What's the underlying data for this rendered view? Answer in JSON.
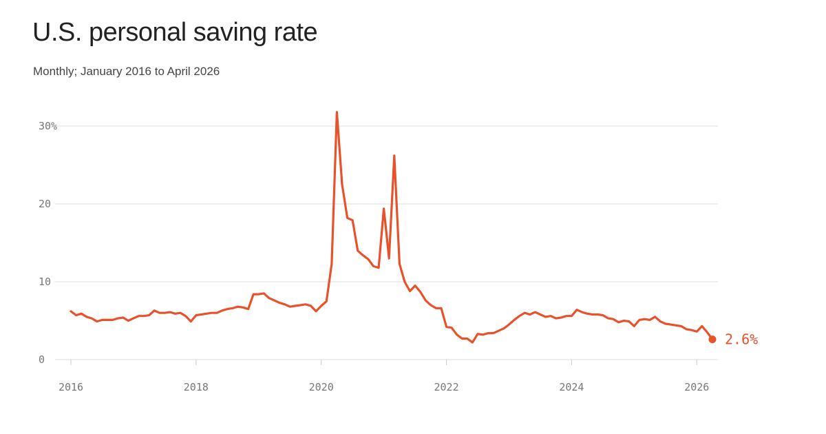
{
  "title": "U.S. personal saving rate",
  "subtitle": "Monthly; January 2016 to April 2026",
  "colors": {
    "line": "#e8512a",
    "grid": "#dddddd",
    "axis_text": "#777777"
  },
  "chart_data": {
    "type": "line",
    "title": "U.S. personal saving rate",
    "subtitle": "Monthly; January 2016 to April 2026",
    "xlabel": "",
    "ylabel": "",
    "x_range": [
      "2016-01",
      "2026-04"
    ],
    "ylim": [
      0,
      30
    ],
    "y_ticks": [
      {
        "value": 0,
        "label": "0"
      },
      {
        "value": 10,
        "label": "10"
      },
      {
        "value": 20,
        "label": "20"
      },
      {
        "value": 30,
        "label": "30%"
      }
    ],
    "x_ticks": [
      {
        "value": "2016-01",
        "label": "2016"
      },
      {
        "value": "2018-01",
        "label": "2018"
      },
      {
        "value": "2020-01",
        "label": "2020"
      },
      {
        "value": "2022-01",
        "label": "2022"
      },
      {
        "value": "2024-01",
        "label": "2024"
      },
      {
        "value": "2026-01",
        "label": "2026"
      }
    ],
    "grid": true,
    "end_label": "2.6%",
    "series": [
      {
        "values": [
          [
            "2016-01",
            6.2
          ],
          [
            "2016-02",
            5.7
          ],
          [
            "2016-03",
            5.9
          ],
          [
            "2016-04",
            5.5
          ],
          [
            "2016-05",
            5.3
          ],
          [
            "2016-06",
            4.9
          ],
          [
            "2016-07",
            5.1
          ],
          [
            "2016-08",
            5.1
          ],
          [
            "2016-09",
            5.1
          ],
          [
            "2016-10",
            5.3
          ],
          [
            "2016-11",
            5.4
          ],
          [
            "2016-12",
            5.0
          ],
          [
            "2017-01",
            5.3
          ],
          [
            "2017-02",
            5.6
          ],
          [
            "2017-03",
            5.6
          ],
          [
            "2017-04",
            5.7
          ],
          [
            "2017-05",
            6.3
          ],
          [
            "2017-06",
            6.0
          ],
          [
            "2017-07",
            6.0
          ],
          [
            "2017-08",
            6.1
          ],
          [
            "2017-09",
            5.9
          ],
          [
            "2017-10",
            6.0
          ],
          [
            "2017-11",
            5.6
          ],
          [
            "2017-12",
            4.9
          ],
          [
            "2018-01",
            5.7
          ],
          [
            "2018-02",
            5.8
          ],
          [
            "2018-03",
            5.9
          ],
          [
            "2018-04",
            6.0
          ],
          [
            "2018-05",
            6.0
          ],
          [
            "2018-06",
            6.3
          ],
          [
            "2018-07",
            6.5
          ],
          [
            "2018-08",
            6.6
          ],
          [
            "2018-09",
            6.8
          ],
          [
            "2018-10",
            6.7
          ],
          [
            "2018-11",
            6.5
          ],
          [
            "2018-12",
            8.4
          ],
          [
            "2019-01",
            8.4
          ],
          [
            "2019-02",
            8.5
          ],
          [
            "2019-03",
            7.9
          ],
          [
            "2019-04",
            7.6
          ],
          [
            "2019-05",
            7.3
          ],
          [
            "2019-06",
            7.1
          ],
          [
            "2019-07",
            6.8
          ],
          [
            "2019-08",
            6.9
          ],
          [
            "2019-09",
            7.0
          ],
          [
            "2019-10",
            7.1
          ],
          [
            "2019-11",
            6.9
          ],
          [
            "2019-12",
            6.2
          ],
          [
            "2020-01",
            6.9
          ],
          [
            "2020-02",
            7.5
          ],
          [
            "2020-03",
            12.3
          ],
          [
            "2020-04",
            31.8
          ],
          [
            "2020-05",
            22.5
          ],
          [
            "2020-06",
            18.2
          ],
          [
            "2020-07",
            17.9
          ],
          [
            "2020-08",
            14.0
          ],
          [
            "2020-09",
            13.4
          ],
          [
            "2020-10",
            12.9
          ],
          [
            "2020-11",
            12.0
          ],
          [
            "2020-12",
            11.8
          ],
          [
            "2021-01",
            19.4
          ],
          [
            "2021-02",
            13.0
          ],
          [
            "2021-03",
            26.2
          ],
          [
            "2021-04",
            12.3
          ],
          [
            "2021-05",
            10.0
          ],
          [
            "2021-06",
            8.8
          ],
          [
            "2021-07",
            9.5
          ],
          [
            "2021-08",
            8.7
          ],
          [
            "2021-09",
            7.6
          ],
          [
            "2021-10",
            7.0
          ],
          [
            "2021-11",
            6.6
          ],
          [
            "2021-12",
            6.6
          ],
          [
            "2022-01",
            4.2
          ],
          [
            "2022-02",
            4.1
          ],
          [
            "2022-03",
            3.2
          ],
          [
            "2022-04",
            2.7
          ],
          [
            "2022-05",
            2.7
          ],
          [
            "2022-06",
            2.2
          ],
          [
            "2022-07",
            3.3
          ],
          [
            "2022-08",
            3.2
          ],
          [
            "2022-09",
            3.4
          ],
          [
            "2022-10",
            3.4
          ],
          [
            "2022-11",
            3.7
          ],
          [
            "2022-12",
            4.0
          ],
          [
            "2023-01",
            4.5
          ],
          [
            "2023-02",
            5.1
          ],
          [
            "2023-03",
            5.6
          ],
          [
            "2023-04",
            6.0
          ],
          [
            "2023-05",
            5.8
          ],
          [
            "2023-06",
            6.1
          ],
          [
            "2023-07",
            5.8
          ],
          [
            "2023-08",
            5.5
          ],
          [
            "2023-09",
            5.6
          ],
          [
            "2023-10",
            5.3
          ],
          [
            "2023-11",
            5.4
          ],
          [
            "2023-12",
            5.6
          ],
          [
            "2024-01",
            5.6
          ],
          [
            "2024-02",
            6.4
          ],
          [
            "2024-03",
            6.1
          ],
          [
            "2024-04",
            5.9
          ],
          [
            "2024-05",
            5.8
          ],
          [
            "2024-06",
            5.8
          ],
          [
            "2024-07",
            5.7
          ],
          [
            "2024-08",
            5.3
          ],
          [
            "2024-09",
            5.2
          ],
          [
            "2024-10",
            4.8
          ],
          [
            "2024-11",
            5.0
          ],
          [
            "2024-12",
            4.9
          ],
          [
            "2025-01",
            4.3
          ],
          [
            "2025-02",
            5.1
          ],
          [
            "2025-03",
            5.2
          ],
          [
            "2025-04",
            5.1
          ],
          [
            "2025-05",
            5.5
          ],
          [
            "2025-06",
            4.9
          ],
          [
            "2025-07",
            4.6
          ],
          [
            "2025-08",
            4.5
          ],
          [
            "2025-09",
            4.4
          ],
          [
            "2025-10",
            4.3
          ],
          [
            "2025-11",
            3.9
          ],
          [
            "2025-12",
            3.8
          ],
          [
            "2026-01",
            3.6
          ],
          [
            "2026-02",
            4.3
          ],
          [
            "2026-03",
            3.5
          ],
          [
            "2026-04",
            2.6
          ]
        ]
      }
    ]
  }
}
